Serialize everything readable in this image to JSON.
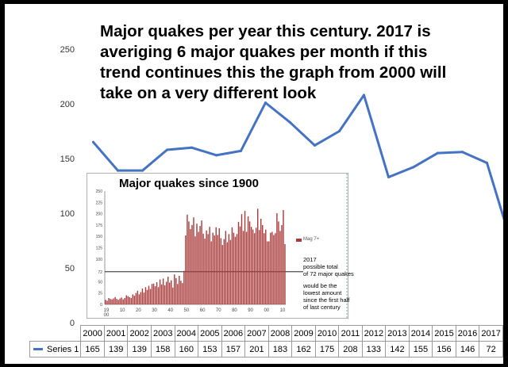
{
  "headline": {
    "lines": [
      "Major quakes per year this century. 2017 is",
      "averiging 6 major quakes per month if this",
      "trend continues this the graph from 2000 will",
      "take on a very different look"
    ]
  },
  "colors": {
    "series": "#4472c4",
    "inset_bars": "#a93a3a",
    "background_outer": "#000000",
    "panel": "#ffffff"
  },
  "chart_data": [
    {
      "type": "line",
      "title": "Major quakes per year this century. 2017 is averiging 6 major quakes per month if this trend continues this the graph from 2000 will take on a very different look",
      "categories": [
        "2000",
        "2001",
        "2002",
        "2003",
        "2004",
        "2005",
        "2006",
        "2007",
        "2008",
        "2009",
        "2010",
        "2011",
        "2012",
        "2013",
        "2014",
        "2015",
        "2016",
        "2017"
      ],
      "series": [
        {
          "name": "Series 1",
          "values": [
            165,
            139,
            139,
            158,
            160,
            153,
            157,
            201,
            183,
            162,
            175,
            208,
            133,
            142,
            155,
            156,
            146,
            72
          ]
        }
      ],
      "ylim": [
        0,
        250
      ],
      "yticks": [
        "0",
        "50",
        "100",
        "150",
        "200",
        "250"
      ],
      "grid": false,
      "legend": "data-table-below",
      "data_table": true
    },
    {
      "type": "bar",
      "title": "Major quakes since 1900",
      "xtick_labels": [
        "19\n00",
        "10",
        "20",
        "30",
        "40",
        "50",
        "60",
        "70",
        "80",
        "90",
        "00",
        "10"
      ],
      "x": [
        1900,
        1901,
        1902,
        1903,
        1904,
        1905,
        1906,
        1907,
        1908,
        1909,
        1910,
        1911,
        1912,
        1913,
        1914,
        1915,
        1916,
        1917,
        1918,
        1919,
        1920,
        1921,
        1922,
        1923,
        1924,
        1925,
        1926,
        1927,
        1928,
        1929,
        1930,
        1931,
        1932,
        1933,
        1934,
        1935,
        1936,
        1937,
        1938,
        1939,
        1940,
        1941,
        1942,
        1943,
        1944,
        1945,
        1946,
        1947,
        1948,
        1949,
        1950,
        1951,
        1952,
        1953,
        1954,
        1955,
        1956,
        1957,
        1958,
        1959,
        1960,
        1961,
        1962,
        1963,
        1964,
        1965,
        1966,
        1967,
        1968,
        1969,
        1970,
        1971,
        1972,
        1973,
        1974,
        1975,
        1976,
        1977,
        1978,
        1979,
        1980,
        1981,
        1982,
        1983,
        1984,
        1985,
        1986,
        1987,
        1988,
        1989,
        1990,
        1991,
        1992,
        1993,
        1994,
        1995,
        1996,
        1997,
        1998,
        1999,
        2000,
        2001,
        2002,
        2003,
        2004,
        2005,
        2006,
        2007,
        2008,
        2009,
        2010,
        2011,
        2012
      ],
      "values": [
        10,
        8,
        14,
        12,
        11,
        13,
        16,
        12,
        10,
        13,
        15,
        11,
        14,
        20,
        18,
        16,
        14,
        22,
        19,
        25,
        30,
        22,
        27,
        35,
        26,
        38,
        32,
        41,
        34,
        45,
        46,
        40,
        49,
        38,
        55,
        44,
        57,
        42,
        50,
        61,
        48,
        53,
        37,
        66,
        58,
        45,
        63,
        52,
        47,
        74,
        152,
        198,
        183,
        166,
        175,
        192,
        150,
        178,
        160,
        173,
        185,
        156,
        145,
        163,
        155,
        171,
        139,
        158,
        152,
        170,
        153,
        168,
        146,
        131,
        144,
        162,
        137,
        155,
        142,
        170,
        158,
        149,
        155,
        182,
        172,
        199,
        162,
        206,
        160,
        194,
        183,
        171,
        165,
        157,
        169,
        211,
        164,
        189,
        175,
        157,
        165,
        139,
        139,
        158,
        160,
        153,
        157,
        201,
        183,
        162,
        175,
        208,
        133
      ],
      "ylim": [
        0,
        250
      ],
      "yticks": [
        "0",
        "25",
        "50",
        "72",
        "100",
        "125",
        "150",
        "175",
        "200",
        "225",
        "250"
      ],
      "reference_line_value": 72,
      "reference_line_label": "72",
      "legend_label": "Mag 7+",
      "annotation_lines": [
        "2017",
        "possible total",
        "of 72 major quakes"
      ],
      "annotation_lines_2": [
        "would be the",
        "lowest amount",
        "since the first half",
        "of last century"
      ],
      "grid": false
    }
  ]
}
